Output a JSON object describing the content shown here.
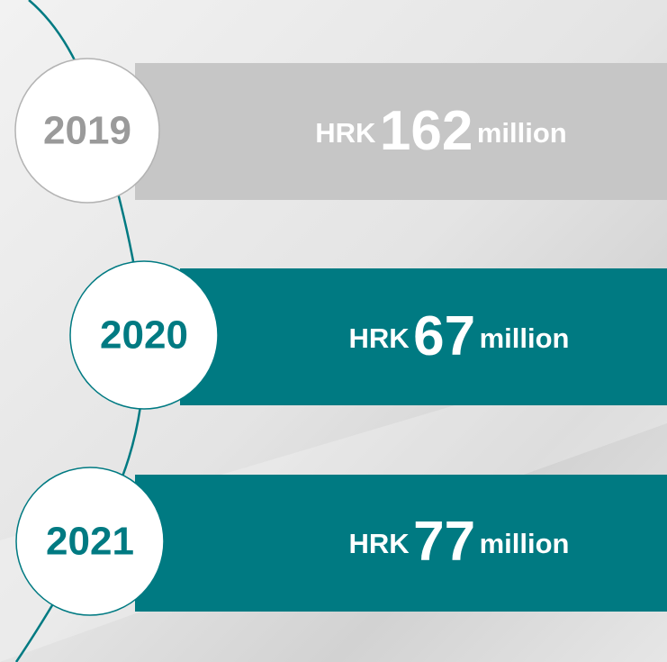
{
  "items": [
    {
      "year": "2019",
      "currency": "HRK",
      "amount": 162,
      "unit": "million"
    },
    {
      "year": "2020",
      "currency": "HRK",
      "amount": 67,
      "unit": "million"
    },
    {
      "year": "2021",
      "currency": "HRK",
      "amount": 77,
      "unit": "million"
    }
  ]
}
